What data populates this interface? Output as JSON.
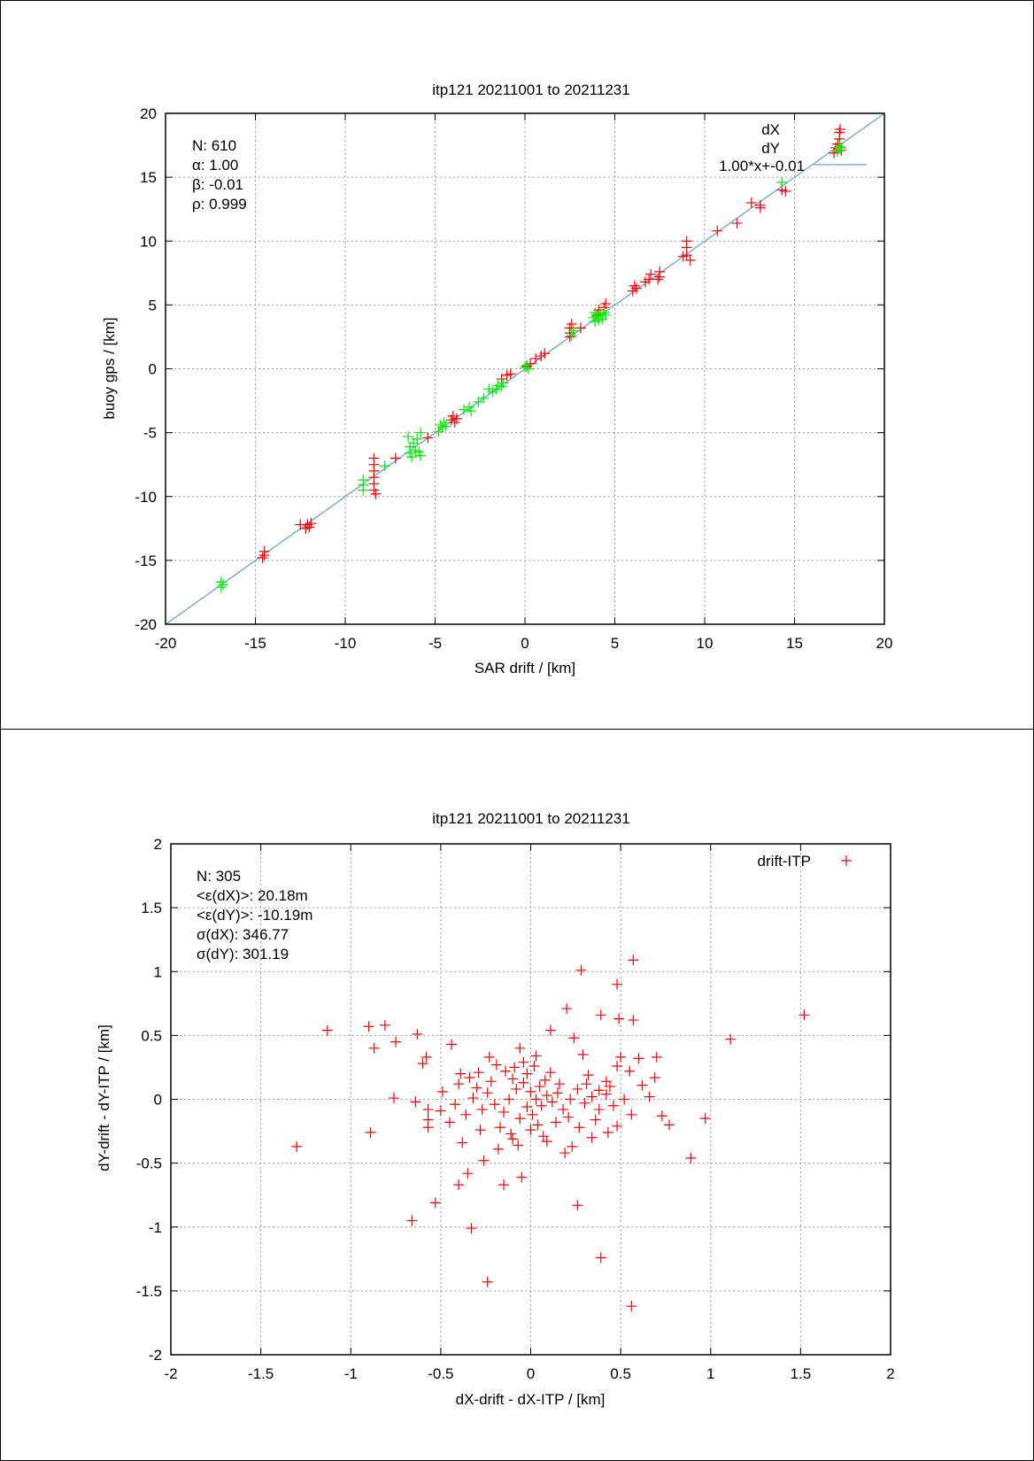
{
  "chart_data": [
    {
      "type": "scatter",
      "title": "itp121 20211001 to 20211231",
      "xlabel": "SAR drift / [km]",
      "ylabel": "buoy gps / [km]",
      "xlim": [
        -20,
        20
      ],
      "ylim": [
        -20,
        20
      ],
      "xticks": [
        -20,
        -15,
        -10,
        -5,
        0,
        5,
        10,
        15,
        20
      ],
      "yticks": [
        -20,
        -15,
        -10,
        -5,
        0,
        5,
        10,
        15,
        20
      ],
      "grid": true,
      "legend_position": "top-right",
      "stats": [
        "N: 610",
        "α: 1.00",
        "β: -0.01",
        "ρ: 0.999"
      ],
      "series": [
        {
          "name": "dX",
          "color": "#ff0000",
          "marker": "plus",
          "points": [
            [
              -14.5,
              -14.6
            ],
            [
              -14.5,
              -14.3
            ],
            [
              -14.6,
              -14.8
            ],
            [
              -12.5,
              -12.2
            ],
            [
              -12.1,
              -12.2
            ],
            [
              -12.0,
              -12.4
            ],
            [
              -11.9,
              -12.1
            ],
            [
              -12.2,
              -12.5
            ],
            [
              -8.4,
              -7.0
            ],
            [
              -8.4,
              -7.5
            ],
            [
              -8.4,
              -8.0
            ],
            [
              -8.4,
              -8.5
            ],
            [
              -8.4,
              -9.0
            ],
            [
              -8.4,
              -9.5
            ],
            [
              -8.3,
              -9.8
            ],
            [
              -7.2,
              -7.0
            ],
            [
              -5.4,
              -5.4
            ],
            [
              -4.1,
              -4.0
            ],
            [
              -4.0,
              -3.7
            ],
            [
              -3.9,
              -4.2
            ],
            [
              -3.8,
              -3.9
            ],
            [
              -1.3,
              -0.8
            ],
            [
              -1.0,
              -0.5
            ],
            [
              -0.8,
              -0.4
            ],
            [
              0.1,
              0.2
            ],
            [
              0.3,
              0.4
            ],
            [
              0.6,
              0.8
            ],
            [
              0.9,
              1.0
            ],
            [
              1.1,
              1.2
            ],
            [
              2.5,
              2.5
            ],
            [
              2.5,
              2.8
            ],
            [
              2.5,
              3.2
            ],
            [
              2.6,
              3.5
            ],
            [
              3.1,
              3.2
            ],
            [
              4.0,
              4.2
            ],
            [
              4.1,
              4.6
            ],
            [
              4.4,
              4.8
            ],
            [
              4.5,
              5.1
            ],
            [
              6.0,
              6.1
            ],
            [
              6.1,
              6.5
            ],
            [
              6.2,
              6.3
            ],
            [
              6.7,
              6.8
            ],
            [
              6.9,
              7.0
            ],
            [
              7.0,
              7.4
            ],
            [
              7.5,
              7.2
            ],
            [
              7.5,
              7.6
            ],
            [
              7.4,
              7.0
            ],
            [
              8.8,
              8.8
            ],
            [
              9.0,
              8.9
            ],
            [
              9.0,
              9.5
            ],
            [
              9.0,
              10.0
            ],
            [
              9.2,
              8.5
            ],
            [
              10.7,
              10.8
            ],
            [
              11.8,
              11.4
            ],
            [
              12.6,
              13.0
            ],
            [
              13.1,
              12.6
            ],
            [
              13.1,
              12.8
            ],
            [
              14.3,
              14.0
            ],
            [
              14.5,
              13.9
            ],
            [
              17.2,
              16.9
            ],
            [
              17.3,
              17.3
            ],
            [
              17.4,
              17.6
            ],
            [
              17.5,
              18.0
            ],
            [
              17.5,
              18.5
            ],
            [
              17.6,
              17.1
            ]
          ]
        },
        {
          "name": "dY",
          "color": "#00ee00",
          "marker": "plus",
          "points": [
            [
              -16.9,
              -16.7
            ],
            [
              -16.9,
              -17.1
            ],
            [
              -16.8,
              -16.9
            ],
            [
              -9.0,
              -8.7
            ],
            [
              -9.0,
              -9.1
            ],
            [
              -9.0,
              -9.5
            ],
            [
              -7.8,
              -7.6
            ],
            [
              -6.5,
              -5.3
            ],
            [
              -6.4,
              -6.1
            ],
            [
              -6.4,
              -6.6
            ],
            [
              -6.3,
              -6.9
            ],
            [
              -6.2,
              -5.8
            ],
            [
              -6.1,
              -6.4
            ],
            [
              -6.0,
              -5.5
            ],
            [
              -5.9,
              -6.5
            ],
            [
              -5.8,
              -6.8
            ],
            [
              -5.8,
              -5.0
            ],
            [
              -4.8,
              -4.9
            ],
            [
              -4.7,
              -4.4
            ],
            [
              -4.6,
              -4.6
            ],
            [
              -4.5,
              -4.2
            ],
            [
              -4.4,
              -4.5
            ],
            [
              -3.4,
              -3.2
            ],
            [
              -3.1,
              -3.0
            ],
            [
              -3.0,
              -3.3
            ],
            [
              -2.6,
              -2.6
            ],
            [
              -2.3,
              -2.3
            ],
            [
              -2.0,
              -1.6
            ],
            [
              -1.8,
              -1.8
            ],
            [
              -1.6,
              -1.6
            ],
            [
              -1.5,
              -1.3
            ],
            [
              -1.3,
              -1.4
            ],
            [
              -1.2,
              -1.1
            ],
            [
              0.0,
              0.1
            ],
            [
              0.1,
              0.3
            ],
            [
              0.2,
              0.0
            ],
            [
              2.6,
              2.6
            ],
            [
              2.7,
              3.0
            ],
            [
              3.8,
              4.0
            ],
            [
              3.9,
              3.7
            ],
            [
              3.9,
              4.4
            ],
            [
              4.0,
              4.1
            ],
            [
              4.1,
              3.8
            ],
            [
              4.2,
              4.3
            ],
            [
              4.3,
              3.9
            ],
            [
              4.4,
              4.4
            ],
            [
              4.5,
              4.2
            ],
            [
              14.3,
              14.6
            ],
            [
              17.4,
              17.0
            ],
            [
              17.5,
              17.4
            ],
            [
              17.6,
              17.3
            ]
          ]
        },
        {
          "name": "1.00*x+-0.01",
          "color": "#5aa0d8",
          "type": "line",
          "slope": 1.0,
          "intercept": -0.01,
          "x": [
            -20,
            20
          ]
        }
      ]
    },
    {
      "type": "scatter",
      "title": "itp121 20211001 to 20211231",
      "xlabel": "dX-drift - dX-ITP / [km]",
      "ylabel": "dY-drift - dY-ITP / [km]",
      "xlim": [
        -2,
        2
      ],
      "ylim": [
        -2,
        2
      ],
      "xticks": [
        -2,
        -1.5,
        -1,
        -0.5,
        0,
        0.5,
        1,
        1.5,
        2
      ],
      "yticks": [
        -2,
        -1.5,
        -1,
        -0.5,
        0,
        0.5,
        1,
        1.5,
        2
      ],
      "grid": true,
      "legend_position": "top-right",
      "stats": [
        "N: 305",
        "<ε(dX)>:  20.18m",
        "<ε(dY)>: -10.19m",
        "σ(dX):  346.77",
        "σ(dY):  301.19"
      ],
      "series": [
        {
          "name": "drift-ITP",
          "color": "#ff0000",
          "marker": "plus",
          "points": [
            [
              -1.13,
              0.54
            ],
            [
              -0.9,
              0.57
            ],
            [
              -0.81,
              0.58
            ],
            [
              -0.87,
              0.4
            ],
            [
              -0.63,
              0.51
            ],
            [
              -0.75,
              0.45
            ],
            [
              -0.6,
              0.28
            ],
            [
              -0.58,
              0.33
            ],
            [
              -0.89,
              -0.26
            ],
            [
              -1.3,
              -0.37
            ],
            [
              -0.76,
              0.01
            ],
            [
              -0.64,
              -0.02
            ],
            [
              -0.57,
              -0.08
            ],
            [
              -0.57,
              -0.16
            ],
            [
              -0.57,
              -0.22
            ],
            [
              -0.66,
              -0.95
            ],
            [
              -0.53,
              -0.81
            ],
            [
              -0.24,
              -1.43
            ],
            [
              -0.33,
              -1.01
            ],
            [
              -0.05,
              -0.61
            ],
            [
              0.28,
              1.01
            ],
            [
              0.48,
              0.9
            ],
            [
              0.57,
              1.09
            ],
            [
              0.2,
              0.71
            ],
            [
              0.39,
              0.66
            ],
            [
              0.57,
              0.62
            ],
            [
              0.49,
              0.63
            ],
            [
              0.24,
              0.48
            ],
            [
              0.11,
              0.54
            ],
            [
              -0.4,
              -0.67
            ],
            [
              -0.15,
              -0.67
            ],
            [
              0.26,
              -0.83
            ],
            [
              0.39,
              -1.24
            ],
            [
              0.56,
              -1.62
            ],
            [
              0.97,
              -0.15
            ],
            [
              0.89,
              -0.46
            ],
            [
              0.77,
              -0.2
            ],
            [
              0.73,
              -0.13
            ],
            [
              1.11,
              0.47
            ],
            [
              1.52,
              0.66
            ],
            [
              -0.44,
              0.43
            ],
            [
              -0.23,
              0.33
            ],
            [
              -0.09,
              0.25
            ],
            [
              -0.04,
              0.29
            ],
            [
              -0.06,
              0.4
            ],
            [
              0.03,
              0.34
            ],
            [
              0.11,
              0.21
            ],
            [
              0.16,
              0.12
            ],
            [
              0.29,
              0.35
            ],
            [
              0.32,
              0.19
            ],
            [
              0.38,
              0.07
            ],
            [
              0.42,
              0.14
            ],
            [
              0.48,
              0.26
            ],
            [
              0.5,
              0.33
            ],
            [
              0.55,
              0.22
            ],
            [
              0.6,
              0.32
            ],
            [
              0.7,
              0.33
            ],
            [
              0.62,
              0.11
            ],
            [
              0.69,
              0.17
            ],
            [
              0.66,
              0.02
            ],
            [
              0.56,
              -0.12
            ],
            [
              0.48,
              -0.21
            ],
            [
              0.43,
              -0.26
            ],
            [
              0.34,
              -0.3
            ],
            [
              0.23,
              -0.37
            ],
            [
              0.19,
              -0.42
            ],
            [
              0.09,
              -0.33
            ],
            [
              0.0,
              -0.24
            ],
            [
              -0.1,
              -0.31
            ],
            [
              -0.18,
              -0.39
            ],
            [
              -0.26,
              -0.48
            ],
            [
              -0.35,
              -0.58
            ],
            [
              -0.28,
              -0.24
            ],
            [
              -0.38,
              -0.34
            ],
            [
              -0.45,
              -0.18
            ],
            [
              -0.5,
              -0.09
            ],
            [
              -0.49,
              0.06
            ],
            [
              -0.4,
              0.12
            ],
            [
              -0.34,
              0.17
            ],
            [
              -0.3,
              0.09
            ],
            [
              -0.24,
              0.05
            ],
            [
              -0.2,
              -0.04
            ],
            [
              -0.15,
              -0.1
            ],
            [
              -0.12,
              0.0
            ],
            [
              -0.08,
              0.08
            ],
            [
              -0.04,
              0.13
            ],
            [
              0.0,
              0.06
            ],
            [
              0.03,
              0.0
            ],
            [
              0.06,
              -0.05
            ],
            [
              0.09,
              0.03
            ],
            [
              0.12,
              -0.02
            ],
            [
              0.15,
              0.05
            ],
            [
              0.18,
              -0.08
            ],
            [
              0.22,
              0.0
            ],
            [
              0.26,
              0.08
            ],
            [
              0.3,
              -0.03
            ],
            [
              0.34,
              0.02
            ],
            [
              0.38,
              -0.08
            ],
            [
              0.42,
              0.04
            ],
            [
              0.46,
              -0.05
            ],
            [
              0.52,
              0.0
            ],
            [
              -0.06,
              -0.15
            ],
            [
              -0.02,
              -0.06
            ],
            [
              0.01,
              -0.12
            ],
            [
              0.05,
              0.1
            ],
            [
              -0.1,
              0.16
            ],
            [
              -0.14,
              0.22
            ],
            [
              -0.22,
              0.14
            ],
            [
              -0.27,
              -0.08
            ],
            [
              -0.32,
              0.01
            ],
            [
              -0.36,
              -0.12
            ],
            [
              0.08,
              0.15
            ],
            [
              0.14,
              -0.18
            ],
            [
              0.21,
              -0.14
            ],
            [
              0.27,
              -0.22
            ],
            [
              0.31,
              0.12
            ],
            [
              0.36,
              -0.16
            ],
            [
              0.44,
              0.1
            ],
            [
              -0.17,
              -0.22
            ],
            [
              -0.11,
              -0.27
            ],
            [
              -0.07,
              -0.36
            ],
            [
              0.04,
              -0.2
            ],
            [
              -0.02,
              0.2
            ],
            [
              0.02,
              0.26
            ],
            [
              0.07,
              -0.29
            ],
            [
              -0.19,
              0.27
            ],
            [
              -0.29,
              0.21
            ],
            [
              -0.39,
              0.2
            ],
            [
              -0.42,
              -0.04
            ]
          ]
        }
      ]
    }
  ]
}
